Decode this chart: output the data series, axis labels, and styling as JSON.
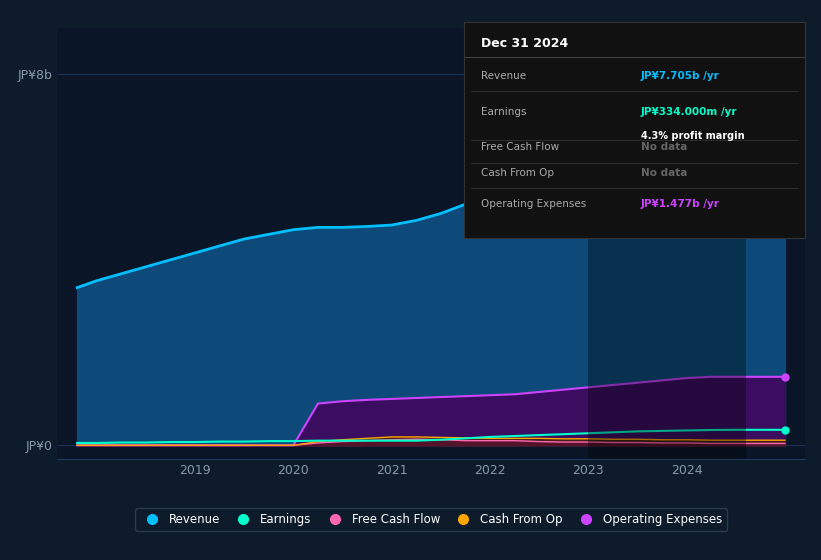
{
  "bg_color": "#0d1b2a",
  "panel_bg": "#0a1628",
  "grid_color": "#1e3a5f",
  "ylabel_top": "JP¥8b",
  "ylabel_bottom": "JP¥0",
  "x_labels": [
    "2019",
    "2020",
    "2021",
    "2022",
    "2023",
    "2024"
  ],
  "years": [
    2017.8,
    2018.0,
    2018.25,
    2018.5,
    2018.75,
    2019.0,
    2019.25,
    2019.5,
    2019.75,
    2020.0,
    2020.25,
    2020.5,
    2020.75,
    2021.0,
    2021.25,
    2021.5,
    2021.75,
    2022.0,
    2022.25,
    2022.5,
    2022.75,
    2023.0,
    2023.25,
    2023.5,
    2023.75,
    2024.0,
    2024.25,
    2024.5,
    2024.75,
    2025.0
  ],
  "revenue": [
    3.4,
    3.55,
    3.7,
    3.85,
    4.0,
    4.15,
    4.3,
    4.45,
    4.55,
    4.65,
    4.7,
    4.7,
    4.72,
    4.75,
    4.85,
    5.0,
    5.2,
    5.4,
    5.55,
    5.7,
    5.85,
    6.0,
    6.2,
    6.4,
    6.6,
    6.8,
    7.0,
    7.3,
    7.6,
    7.705
  ],
  "earnings": [
    0.05,
    0.05,
    0.06,
    0.06,
    0.07,
    0.07,
    0.08,
    0.08,
    0.09,
    0.09,
    0.1,
    0.1,
    0.1,
    0.1,
    0.1,
    0.12,
    0.15,
    0.18,
    0.2,
    0.22,
    0.24,
    0.26,
    0.28,
    0.3,
    0.31,
    0.32,
    0.33,
    0.334,
    0.334,
    0.334
  ],
  "operating_expenses": [
    0.0,
    0.0,
    0.0,
    0.0,
    0.0,
    0.0,
    0.0,
    0.0,
    0.0,
    0.0,
    0.9,
    0.95,
    0.98,
    1.0,
    1.02,
    1.04,
    1.06,
    1.08,
    1.1,
    1.15,
    1.2,
    1.25,
    1.3,
    1.35,
    1.4,
    1.45,
    1.477,
    1.477,
    1.477,
    1.477
  ],
  "free_cash_flow": [
    0.0,
    0.0,
    0.0,
    0.0,
    0.0,
    0.0,
    0.0,
    0.0,
    0.0,
    0.0,
    0.05,
    0.08,
    0.1,
    0.12,
    0.13,
    0.12,
    0.1,
    0.1,
    0.1,
    0.08,
    0.07,
    0.07,
    0.06,
    0.06,
    0.05,
    0.05,
    0.04,
    0.04,
    0.04,
    0.04
  ],
  "cash_from_op": [
    0.0,
    0.0,
    0.0,
    0.0,
    0.0,
    0.0,
    0.0,
    0.0,
    0.0,
    0.0,
    0.08,
    0.12,
    0.15,
    0.18,
    0.18,
    0.17,
    0.16,
    0.15,
    0.15,
    0.15,
    0.14,
    0.14,
    0.13,
    0.13,
    0.12,
    0.12,
    0.11,
    0.11,
    0.11,
    0.11
  ],
  "revenue_color": "#00bfff",
  "revenue_fill": "#0d4a7a",
  "earnings_color": "#00ffcc",
  "opex_color": "#cc44ff",
  "opex_fill": "#3a0d60",
  "fcf_color": "#ff69b4",
  "fcf_fill": "#5a1030",
  "cashop_color": "#ffa500",
  "cashop_fill": "#4a2800",
  "highlight_x_start": 2023.0,
  "highlight_x_end": 2024.6,
  "ylim": [
    -0.3,
    9.0
  ],
  "xlim": [
    2017.6,
    2025.2
  ],
  "tooltip_rows": [
    {
      "label": "Revenue",
      "value": "JP¥7.705b /yr",
      "color": "#00bfff",
      "sub": null
    },
    {
      "label": "Earnings",
      "value": "JP¥334.000m /yr",
      "color": "#00ffcc",
      "sub": "4.3% profit margin"
    },
    {
      "label": "Free Cash Flow",
      "value": "No data",
      "color": "#666666",
      "sub": null
    },
    {
      "label": "Cash From Op",
      "value": "No data",
      "color": "#666666",
      "sub": null
    },
    {
      "label": "Operating Expenses",
      "value": "JP¥1.477b /yr",
      "color": "#cc44ff",
      "sub": null
    }
  ],
  "tooltip_title": "Dec 31 2024",
  "legend_labels": [
    "Revenue",
    "Earnings",
    "Free Cash Flow",
    "Cash From Op",
    "Operating Expenses"
  ],
  "legend_colors": [
    "#00bfff",
    "#00ffcc",
    "#ff69b4",
    "#ffa500",
    "#cc44ff"
  ]
}
